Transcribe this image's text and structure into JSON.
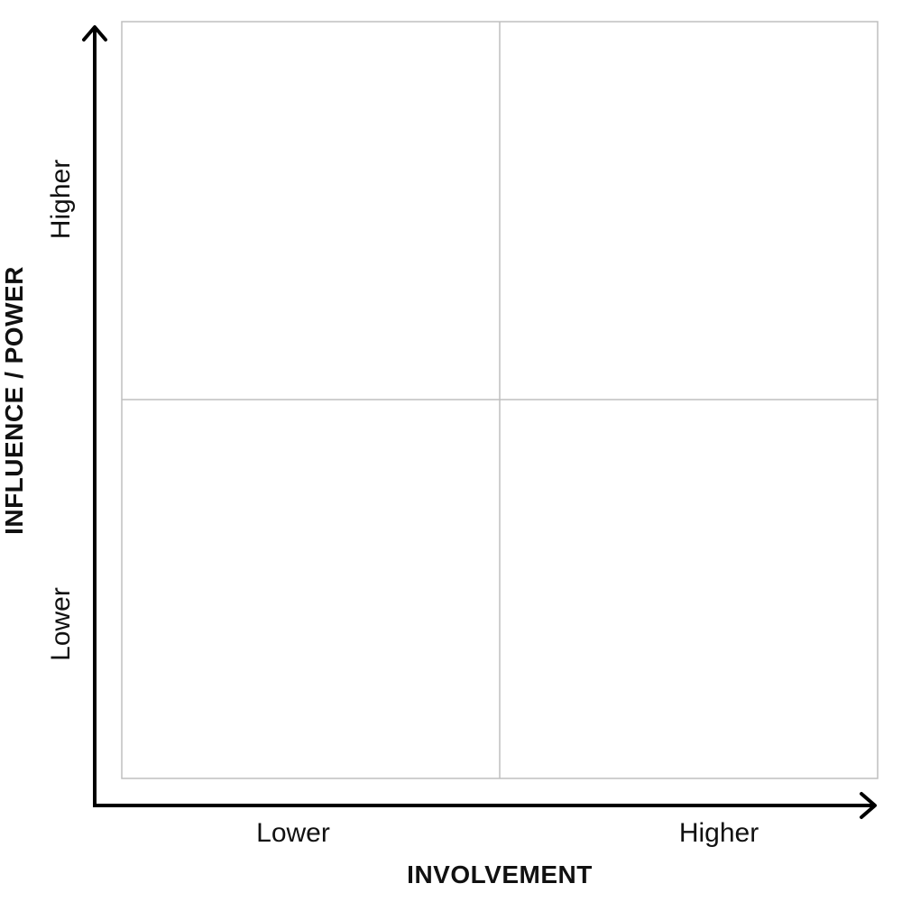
{
  "x_axis": {
    "title": "INVOLVEMENT",
    "low_label": "Lower",
    "high_label": "Higher"
  },
  "y_axis": {
    "title": "INFLUENCE / POWER",
    "low_label": "Lower",
    "high_label": "Higher"
  },
  "colors": {
    "axis": "#000000",
    "grid": "#bfbfbf",
    "text": "#111111"
  }
}
